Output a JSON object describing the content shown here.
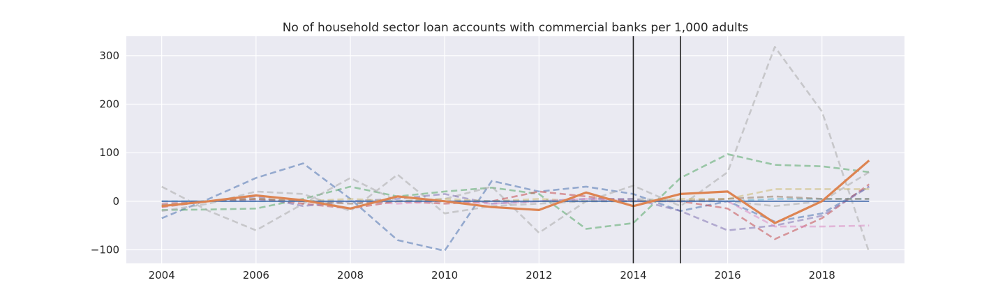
{
  "chart_data": {
    "type": "line",
    "title": "No of household sector loan accounts with commercial banks per 1,000 adults",
    "xlabel": "",
    "ylabel": "",
    "x": [
      2004,
      2005,
      2006,
      2007,
      2008,
      2009,
      2010,
      2011,
      2012,
      2013,
      2014,
      2015,
      2016,
      2017,
      2018,
      2019
    ],
    "xlim": [
      2003.25,
      2019.75
    ],
    "ylim": [
      -128,
      340
    ],
    "xticks": [
      2004,
      2006,
      2008,
      2010,
      2012,
      2014,
      2016,
      2018
    ],
    "yticks": [
      -100,
      0,
      100,
      200,
      300
    ],
    "grid": true,
    "vlines": [
      2014,
      2015
    ],
    "series": [
      {
        "style": "dashed",
        "color": "#4c72b0",
        "values": [
          -35,
          5,
          48,
          78,
          5,
          -80,
          -102,
          42,
          20,
          30,
          15,
          -20,
          0,
          -42,
          -25,
          30
        ]
      },
      {
        "style": "dashed",
        "color": "#55a868",
        "values": [
          -18,
          -17,
          -15,
          5,
          30,
          10,
          20,
          28,
          15,
          -57,
          -45,
          48,
          97,
          75,
          72,
          60
        ]
      },
      {
        "style": "dashed",
        "color": "#aaaaaa",
        "values": [
          30,
          -20,
          -60,
          -5,
          48,
          0,
          5,
          30,
          -65,
          0,
          32,
          -10,
          60,
          318,
          185,
          -105
        ]
      },
      {
        "style": "dashed",
        "color": "#aaaaaa",
        "values": [
          -20,
          -5,
          20,
          15,
          -20,
          55,
          -25,
          -10,
          -5,
          0,
          5,
          2,
          0,
          -10,
          0,
          60
        ]
      },
      {
        "style": "dashed",
        "color": "#c44e52",
        "values": [
          -12,
          0,
          5,
          -5,
          -15,
          0,
          -5,
          0,
          20,
          10,
          0,
          0,
          -15,
          -78,
          -35,
          35
        ]
      },
      {
        "style": "dashed",
        "color": "#8172b2",
        "values": [
          -10,
          0,
          10,
          -10,
          0,
          5,
          15,
          -5,
          0,
          5,
          5,
          -20,
          -60,
          -50,
          -30,
          30
        ]
      },
      {
        "style": "dashed",
        "color": "#ccb974",
        "values": [
          -5,
          0,
          5,
          0,
          5,
          0,
          5,
          0,
          5,
          0,
          0,
          5,
          5,
          25,
          25,
          25
        ]
      },
      {
        "style": "dashed",
        "color": "#da8bc3",
        "values": [
          -5,
          0,
          2,
          0,
          0,
          -5,
          0,
          -5,
          0,
          5,
          0,
          0,
          0,
          -52,
          -52,
          -50
        ]
      },
      {
        "style": "dashed",
        "color": "#64b5cd",
        "values": [
          0,
          0,
          0,
          0,
          0,
          0,
          0,
          0,
          0,
          0,
          0,
          0,
          0,
          5,
          5,
          5
        ]
      },
      {
        "style": "dashed",
        "color": "#937860",
        "values": [
          -8,
          0,
          5,
          0,
          -5,
          0,
          0,
          0,
          0,
          0,
          0,
          0,
          5,
          10,
          5,
          5
        ]
      },
      {
        "style": "solid",
        "color": "#4c72b0",
        "values": [
          0,
          0,
          0,
          0,
          0,
          0,
          0,
          0,
          0,
          0,
          0,
          0,
          0,
          0,
          0,
          0
        ]
      },
      {
        "style": "solid",
        "color": "#dd8452",
        "values": [
          -10,
          0,
          12,
          2,
          -15,
          10,
          0,
          -12,
          -18,
          18,
          -10,
          15,
          20,
          -45,
          0,
          84
        ]
      }
    ]
  }
}
